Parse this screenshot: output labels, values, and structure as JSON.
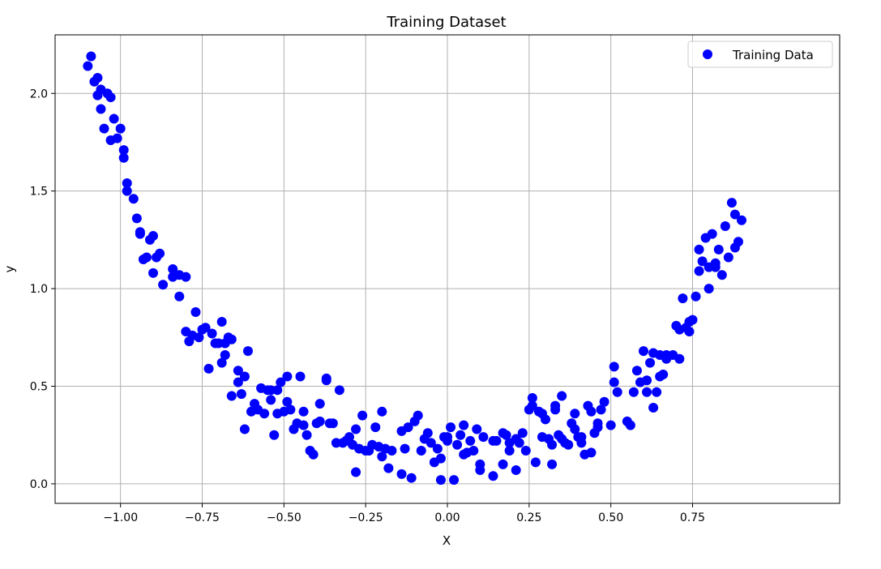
{
  "chart_data": {
    "type": "scatter",
    "title": "Training Dataset",
    "xlabel": "X",
    "ylabel": "y",
    "xlim": [
      -1.2,
      1.2
    ],
    "ylim": [
      -0.1,
      2.3
    ],
    "xticks": [
      "−1.00",
      "−0.75",
      "−0.50",
      "−0.25",
      "0.00",
      "0.25",
      "0.50",
      "0.75"
    ],
    "xtick_values": [
      -1.0,
      -0.75,
      -0.5,
      -0.25,
      0.0,
      0.25,
      0.5,
      0.75
    ],
    "yticks": [
      "0.0",
      "0.5",
      "1.0",
      "1.5",
      "2.0"
    ],
    "ytick_values": [
      0.0,
      0.5,
      1.0,
      1.5,
      2.0
    ],
    "grid": true,
    "legend": {
      "position": "top-right",
      "entries": [
        "Training Data"
      ]
    },
    "color": "#0000ff",
    "series": [
      {
        "name": "Training Data",
        "points": [
          [
            -1.1,
            2.14
          ],
          [
            -1.09,
            2.19
          ],
          [
            -1.08,
            2.06
          ],
          [
            -1.07,
            2.08
          ],
          [
            -1.07,
            1.99
          ],
          [
            -1.06,
            1.92
          ],
          [
            -1.06,
            2.02
          ],
          [
            -1.05,
            1.82
          ],
          [
            -1.04,
            2.0
          ],
          [
            -1.03,
            1.76
          ],
          [
            -1.03,
            1.98
          ],
          [
            -1.02,
            1.87
          ],
          [
            -1.01,
            1.77
          ],
          [
            -1.0,
            1.82
          ],
          [
            -0.99,
            1.71
          ],
          [
            -0.99,
            1.67
          ],
          [
            -0.98,
            1.54
          ],
          [
            -0.98,
            1.5
          ],
          [
            -0.96,
            1.46
          ],
          [
            -0.95,
            1.36
          ],
          [
            -0.94,
            1.28
          ],
          [
            -0.94,
            1.29
          ],
          [
            -0.93,
            1.15
          ],
          [
            -0.92,
            1.16
          ],
          [
            -0.91,
            1.25
          ],
          [
            -0.9,
            1.08
          ],
          [
            -0.9,
            1.27
          ],
          [
            -0.89,
            1.16
          ],
          [
            -0.88,
            1.18
          ],
          [
            -0.87,
            1.02
          ],
          [
            -0.84,
            1.1
          ],
          [
            -0.84,
            1.06
          ],
          [
            -0.82,
            0.96
          ],
          [
            -0.82,
            1.07
          ],
          [
            -0.8,
            1.06
          ],
          [
            -0.8,
            0.78
          ],
          [
            -0.79,
            0.73
          ],
          [
            -0.78,
            0.76
          ],
          [
            -0.77,
            0.88
          ],
          [
            -0.76,
            0.75
          ],
          [
            -0.75,
            0.79
          ],
          [
            -0.74,
            0.8
          ],
          [
            -0.73,
            0.59
          ],
          [
            -0.72,
            0.77
          ],
          [
            -0.71,
            0.72
          ],
          [
            -0.7,
            0.72
          ],
          [
            -0.69,
            0.62
          ],
          [
            -0.69,
            0.83
          ],
          [
            -0.68,
            0.72
          ],
          [
            -0.68,
            0.66
          ],
          [
            -0.67,
            0.75
          ],
          [
            -0.66,
            0.45
          ],
          [
            -0.66,
            0.74
          ],
          [
            -0.64,
            0.52
          ],
          [
            -0.64,
            0.58
          ],
          [
            -0.63,
            0.46
          ],
          [
            -0.62,
            0.55
          ],
          [
            -0.62,
            0.28
          ],
          [
            -0.61,
            0.68
          ],
          [
            -0.6,
            0.37
          ],
          [
            -0.59,
            0.41
          ],
          [
            -0.58,
            0.38
          ],
          [
            -0.57,
            0.49
          ],
          [
            -0.56,
            0.36
          ],
          [
            -0.55,
            0.48
          ],
          [
            -0.54,
            0.48
          ],
          [
            -0.54,
            0.43
          ],
          [
            -0.53,
            0.25
          ],
          [
            -0.52,
            0.48
          ],
          [
            -0.52,
            0.36
          ],
          [
            -0.51,
            0.52
          ],
          [
            -0.5,
            0.37
          ],
          [
            -0.49,
            0.42
          ],
          [
            -0.49,
            0.55
          ],
          [
            -0.48,
            0.38
          ],
          [
            -0.47,
            0.28
          ],
          [
            -0.46,
            0.31
          ],
          [
            -0.45,
            0.55
          ],
          [
            -0.44,
            0.3
          ],
          [
            -0.44,
            0.37
          ],
          [
            -0.43,
            0.25
          ],
          [
            -0.42,
            0.17
          ],
          [
            -0.41,
            0.15
          ],
          [
            -0.4,
            0.31
          ],
          [
            -0.39,
            0.41
          ],
          [
            -0.39,
            0.32
          ],
          [
            -0.37,
            0.54
          ],
          [
            -0.37,
            0.53
          ],
          [
            -0.36,
            0.31
          ],
          [
            -0.35,
            0.31
          ],
          [
            -0.34,
            0.21
          ],
          [
            -0.33,
            0.48
          ],
          [
            -0.32,
            0.21
          ],
          [
            -0.31,
            0.22
          ],
          [
            -0.3,
            0.24
          ],
          [
            -0.29,
            0.2
          ],
          [
            -0.28,
            0.06
          ],
          [
            -0.28,
            0.28
          ],
          [
            -0.27,
            0.18
          ],
          [
            -0.26,
            0.35
          ],
          [
            -0.25,
            0.17
          ],
          [
            -0.24,
            0.17
          ],
          [
            -0.23,
            0.2
          ],
          [
            -0.22,
            0.29
          ],
          [
            -0.21,
            0.19
          ],
          [
            -0.2,
            0.14
          ],
          [
            -0.2,
            0.37
          ],
          [
            -0.19,
            0.18
          ],
          [
            -0.18,
            0.08
          ],
          [
            -0.17,
            0.17
          ],
          [
            -0.14,
            0.27
          ],
          [
            -0.14,
            0.05
          ],
          [
            -0.13,
            0.18
          ],
          [
            -0.12,
            0.29
          ],
          [
            -0.11,
            0.03
          ],
          [
            -0.1,
            0.32
          ],
          [
            -0.09,
            0.35
          ],
          [
            -0.08,
            0.17
          ],
          [
            -0.07,
            0.23
          ],
          [
            -0.06,
            0.26
          ],
          [
            -0.05,
            0.21
          ],
          [
            -0.04,
            0.11
          ],
          [
            -0.03,
            0.18
          ],
          [
            -0.02,
            0.02
          ],
          [
            -0.02,
            0.13
          ],
          [
            -0.01,
            0.24
          ],
          [
            0.0,
            0.22
          ],
          [
            0.0,
            0.24
          ],
          [
            0.01,
            0.29
          ],
          [
            0.02,
            0.02
          ],
          [
            0.03,
            0.2
          ],
          [
            0.04,
            0.25
          ],
          [
            0.05,
            0.3
          ],
          [
            0.05,
            0.15
          ],
          [
            0.06,
            0.16
          ],
          [
            0.07,
            0.22
          ],
          [
            0.08,
            0.17
          ],
          [
            0.09,
            0.28
          ],
          [
            0.1,
            0.07
          ],
          [
            0.1,
            0.1
          ],
          [
            0.11,
            0.24
          ],
          [
            0.14,
            0.04
          ],
          [
            0.14,
            0.22
          ],
          [
            0.15,
            0.22
          ],
          [
            0.17,
            0.26
          ],
          [
            0.17,
            0.1
          ],
          [
            0.18,
            0.25
          ],
          [
            0.19,
            0.17
          ],
          [
            0.19,
            0.21
          ],
          [
            0.21,
            0.07
          ],
          [
            0.21,
            0.23
          ],
          [
            0.22,
            0.21
          ],
          [
            0.23,
            0.26
          ],
          [
            0.24,
            0.17
          ],
          [
            0.25,
            0.38
          ],
          [
            0.26,
            0.44
          ],
          [
            0.26,
            0.4
          ],
          [
            0.27,
            0.11
          ],
          [
            0.28,
            0.37
          ],
          [
            0.29,
            0.36
          ],
          [
            0.29,
            0.24
          ],
          [
            0.3,
            0.33
          ],
          [
            0.31,
            0.23
          ],
          [
            0.32,
            0.2
          ],
          [
            0.32,
            0.1
          ],
          [
            0.33,
            0.4
          ],
          [
            0.33,
            0.38
          ],
          [
            0.34,
            0.25
          ],
          [
            0.35,
            0.45
          ],
          [
            0.35,
            0.23
          ],
          [
            0.36,
            0.21
          ],
          [
            0.37,
            0.2
          ],
          [
            0.38,
            0.31
          ],
          [
            0.39,
            0.28
          ],
          [
            0.39,
            0.36
          ],
          [
            0.4,
            0.24
          ],
          [
            0.41,
            0.21
          ],
          [
            0.41,
            0.24
          ],
          [
            0.42,
            0.15
          ],
          [
            0.43,
            0.4
          ],
          [
            0.44,
            0.16
          ],
          [
            0.44,
            0.37
          ],
          [
            0.45,
            0.26
          ],
          [
            0.46,
            0.29
          ],
          [
            0.46,
            0.31
          ],
          [
            0.47,
            0.38
          ],
          [
            0.48,
            0.42
          ],
          [
            0.5,
            0.3
          ],
          [
            0.51,
            0.6
          ],
          [
            0.51,
            0.52
          ],
          [
            0.52,
            0.47
          ],
          [
            0.55,
            0.32
          ],
          [
            0.56,
            0.3
          ],
          [
            0.57,
            0.47
          ],
          [
            0.58,
            0.58
          ],
          [
            0.59,
            0.52
          ],
          [
            0.6,
            0.68
          ],
          [
            0.61,
            0.53
          ],
          [
            0.61,
            0.47
          ],
          [
            0.62,
            0.62
          ],
          [
            0.63,
            0.67
          ],
          [
            0.63,
            0.39
          ],
          [
            0.64,
            0.47
          ],
          [
            0.65,
            0.55
          ],
          [
            0.65,
            0.66
          ],
          [
            0.66,
            0.56
          ],
          [
            0.67,
            0.66
          ],
          [
            0.67,
            0.64
          ],
          [
            0.69,
            0.66
          ],
          [
            0.7,
            0.81
          ],
          [
            0.71,
            0.79
          ],
          [
            0.71,
            0.64
          ],
          [
            0.72,
            0.95
          ],
          [
            0.73,
            0.8
          ],
          [
            0.74,
            0.78
          ],
          [
            0.74,
            0.83
          ],
          [
            0.75,
            0.84
          ],
          [
            0.76,
            0.96
          ],
          [
            0.77,
            1.2
          ],
          [
            0.77,
            1.09
          ],
          [
            0.78,
            1.14
          ],
          [
            0.79,
            1.26
          ],
          [
            0.8,
            1.0
          ],
          [
            0.8,
            1.11
          ],
          [
            0.81,
            1.28
          ],
          [
            0.82,
            1.11
          ],
          [
            0.82,
            1.13
          ],
          [
            0.83,
            1.2
          ],
          [
            0.84,
            1.07
          ],
          [
            0.85,
            1.32
          ],
          [
            0.86,
            1.16
          ],
          [
            0.87,
            1.44
          ],
          [
            0.88,
            1.21
          ],
          [
            0.88,
            1.38
          ],
          [
            0.89,
            1.24
          ],
          [
            0.9,
            1.35
          ]
        ]
      }
    ]
  }
}
